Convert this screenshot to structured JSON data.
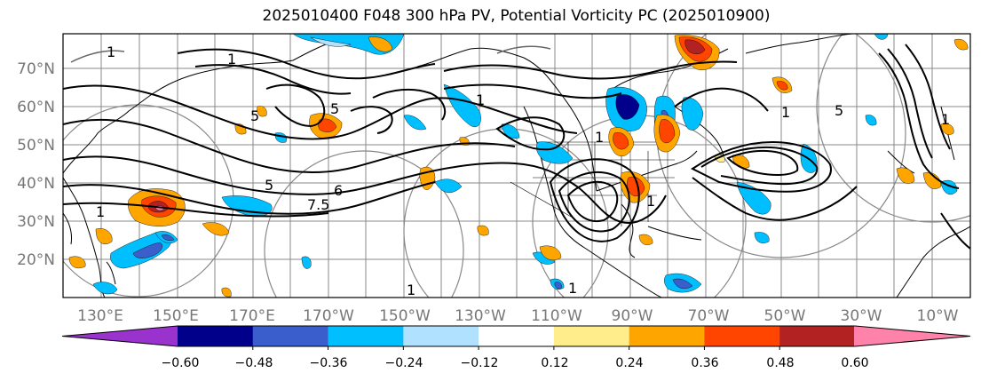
{
  "title": "2025010400 F048 300 hPa PV, Potential Vorticity PC (2025010900)",
  "latitude_labels": [
    "70°N",
    "60°N",
    "50°N",
    "40°N",
    "30°N",
    "20°N"
  ],
  "longitude_labels": [
    "130°E",
    "150°E",
    "170°E",
    "170°W",
    "150°W",
    "130°W",
    "110°W",
    "90°W",
    "70°W",
    "50°W",
    "30°W",
    "10°W"
  ],
  "colorbar": {
    "tick_labels": [
      "−0.60",
      "−0.48",
      "−0.36",
      "−0.24",
      "−0.12",
      "0.12",
      "0.24",
      "0.36",
      "0.48",
      "0.60"
    ],
    "colors": [
      "#9a32cd",
      "#00008b",
      "#3a5fcd",
      "#00bfff",
      "#b0e2ff",
      "#ffffff",
      "#ffec8b",
      "#ffa500",
      "#ff4500",
      "#b22222",
      "#ff82ab"
    ]
  },
  "contour_labels": [
    "1",
    "1",
    "1",
    "1",
    "1",
    "1",
    "1",
    "1",
    "1",
    "5",
    "5",
    "5",
    "5",
    "6",
    "7.5",
    "1"
  ]
}
